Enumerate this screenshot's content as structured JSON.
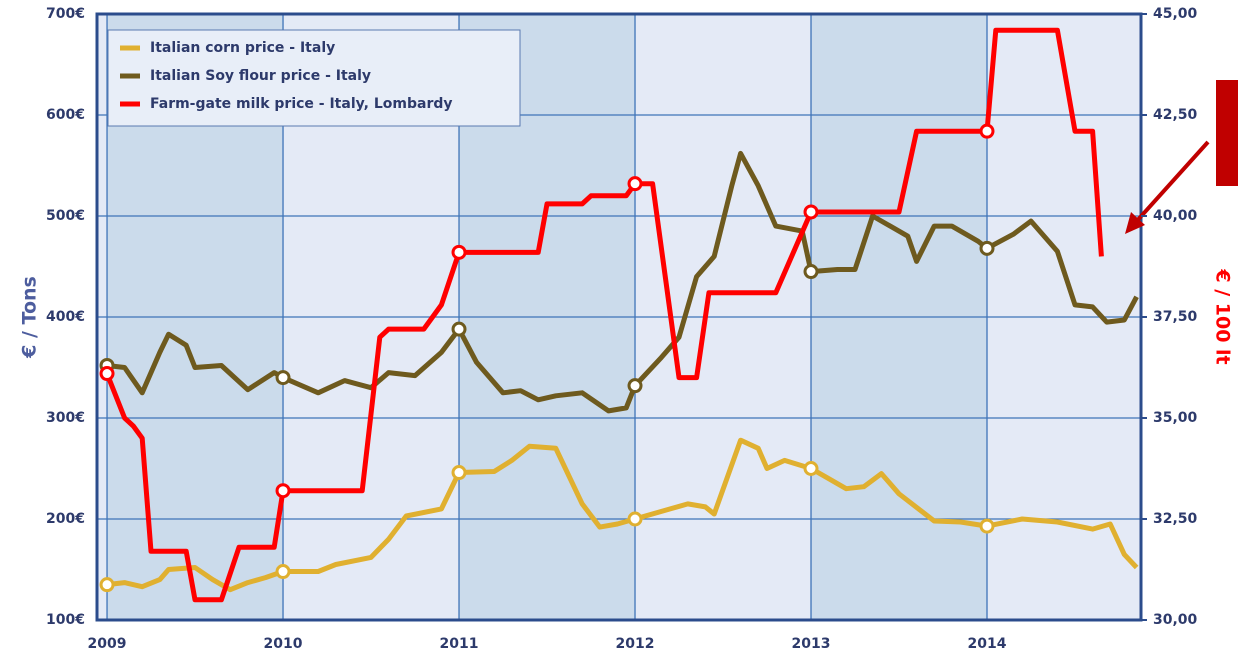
{
  "chart_data": {
    "type": "line",
    "xlabel": null,
    "ylabel": "€ / Tons",
    "y2label": "€ / 100 lt",
    "xlim": [
      2008.943,
      2014.875
    ],
    "xticks": [
      2009,
      2010,
      2011,
      2012,
      2013,
      2014
    ],
    "ylim": [
      100,
      700
    ],
    "yticks": [
      {
        "value": 100,
        "label": "100€"
      },
      {
        "value": 200,
        "label": "200€"
      },
      {
        "value": 300,
        "label": "300€"
      },
      {
        "value": 400,
        "label": "400€"
      },
      {
        "value": 500,
        "label": "500€"
      },
      {
        "value": 600,
        "label": "600€"
      },
      {
        "value": 700,
        "label": "700€"
      }
    ],
    "y2lim": [
      30,
      45
    ],
    "y2ticks": [
      {
        "value": 30,
        "label": "30,00"
      },
      {
        "value": 32.5,
        "label": "32,50"
      },
      {
        "value": 35,
        "label": "35,00"
      },
      {
        "value": 37.5,
        "label": "37,50"
      },
      {
        "value": 40,
        "label": "40,00"
      },
      {
        "value": 42.5,
        "label": "42,50"
      },
      {
        "value": 45,
        "label": "45,00"
      }
    ],
    "grid": true,
    "legend": "upper left",
    "series": [
      {
        "name": "Italian corn price - Italy",
        "color": "#e0b030",
        "x": [
          2009.0,
          2009.1,
          2009.2,
          2009.3,
          2009.35,
          2009.5,
          2009.6,
          2009.7,
          2009.8,
          2009.9,
          2010.0,
          2010.2,
          2010.3,
          2010.5,
          2010.6,
          2010.7,
          2010.9,
          2011.0,
          2011.2,
          2011.3,
          2011.4,
          2011.55,
          2011.7,
          2011.8,
          2011.9,
          2012.0,
          2012.2,
          2012.3,
          2012.4,
          2012.45,
          2012.6,
          2012.7,
          2012.75,
          2012.85,
          2013.0,
          2013.1,
          2013.2,
          2013.3,
          2013.4,
          2013.5,
          2013.7,
          2013.85,
          2014.0,
          2014.2,
          2014.4,
          2014.6,
          2014.7,
          2014.78,
          2014.85
        ],
        "values": [
          135,
          137,
          133,
          140,
          150,
          152,
          140,
          130,
          137,
          142,
          148,
          148,
          155,
          162,
          180,
          203,
          210,
          246,
          247,
          258,
          272,
          270,
          215,
          192,
          195,
          200,
          210,
          215,
          212,
          205,
          278,
          270,
          250,
          258,
          250,
          240,
          230,
          232,
          245,
          225,
          198,
          197,
          193,
          200,
          197,
          190,
          195,
          165,
          152
        ]
      },
      {
        "name": "Italian Soy flour price - Italy",
        "color": "#6e5a1e",
        "x": [
          2009.0,
          2009.1,
          2009.2,
          2009.3,
          2009.35,
          2009.45,
          2009.5,
          2009.65,
          2009.8,
          2009.95,
          2010.0,
          2010.2,
          2010.35,
          2010.5,
          2010.6,
          2010.75,
          2010.9,
          2011.0,
          2011.1,
          2011.25,
          2011.35,
          2011.45,
          2011.55,
          2011.7,
          2011.85,
          2011.95,
          2012.0,
          2012.15,
          2012.25,
          2012.35,
          2012.45,
          2012.55,
          2012.6,
          2012.7,
          2012.8,
          2012.95,
          2013.0,
          2013.15,
          2013.25,
          2013.35,
          2013.45,
          2013.55,
          2013.6,
          2013.7,
          2013.8,
          2013.95,
          2014.0,
          2014.15,
          2014.25,
          2014.4,
          2014.5,
          2014.6,
          2014.68,
          2014.78,
          2014.85
        ],
        "values": [
          352,
          350,
          325,
          365,
          383,
          372,
          350,
          352,
          328,
          345,
          340,
          325,
          337,
          330,
          345,
          342,
          365,
          388,
          355,
          325,
          327,
          318,
          322,
          325,
          307,
          310,
          332,
          360,
          380,
          440,
          460,
          530,
          562,
          530,
          490,
          485,
          445,
          447,
          447,
          500,
          490,
          480,
          455,
          490,
          490,
          475,
          468,
          482,
          495,
          465,
          412,
          410,
          395,
          397,
          420
        ]
      },
      {
        "name": "Farm-gate milk price - Italy, Lombardy",
        "color": "#ff0000",
        "axis": "y2",
        "x": [
          2009.0,
          2009.1,
          2009.15,
          2009.2,
          2009.25,
          2009.45,
          2009.5,
          2009.65,
          2009.75,
          2009.85,
          2009.95,
          2010.0,
          2010.45,
          2010.55,
          2010.6,
          2010.8,
          2010.9,
          2011.0,
          2011.45,
          2011.5,
          2011.7,
          2011.75,
          2011.95,
          2012.0,
          2012.1,
          2012.25,
          2012.35,
          2012.42,
          2012.75,
          2012.8,
          2013.0,
          2013.5,
          2013.6,
          2014.0,
          2014.05,
          2014.4,
          2014.5,
          2014.6,
          2014.65
        ],
        "values": [
          36.1,
          35.0,
          34.8,
          34.5,
          31.7,
          31.7,
          30.5,
          30.5,
          31.8,
          31.8,
          31.8,
          33.2,
          33.2,
          37.0,
          37.2,
          37.2,
          37.8,
          39.1,
          39.1,
          40.3,
          40.3,
          40.5,
          40.5,
          40.8,
          40.8,
          36.0,
          36.0,
          38.1,
          38.1,
          38.1,
          40.1,
          40.1,
          42.1,
          42.1,
          44.6,
          44.6,
          42.1,
          42.1,
          39.0
        ]
      }
    ]
  }
}
